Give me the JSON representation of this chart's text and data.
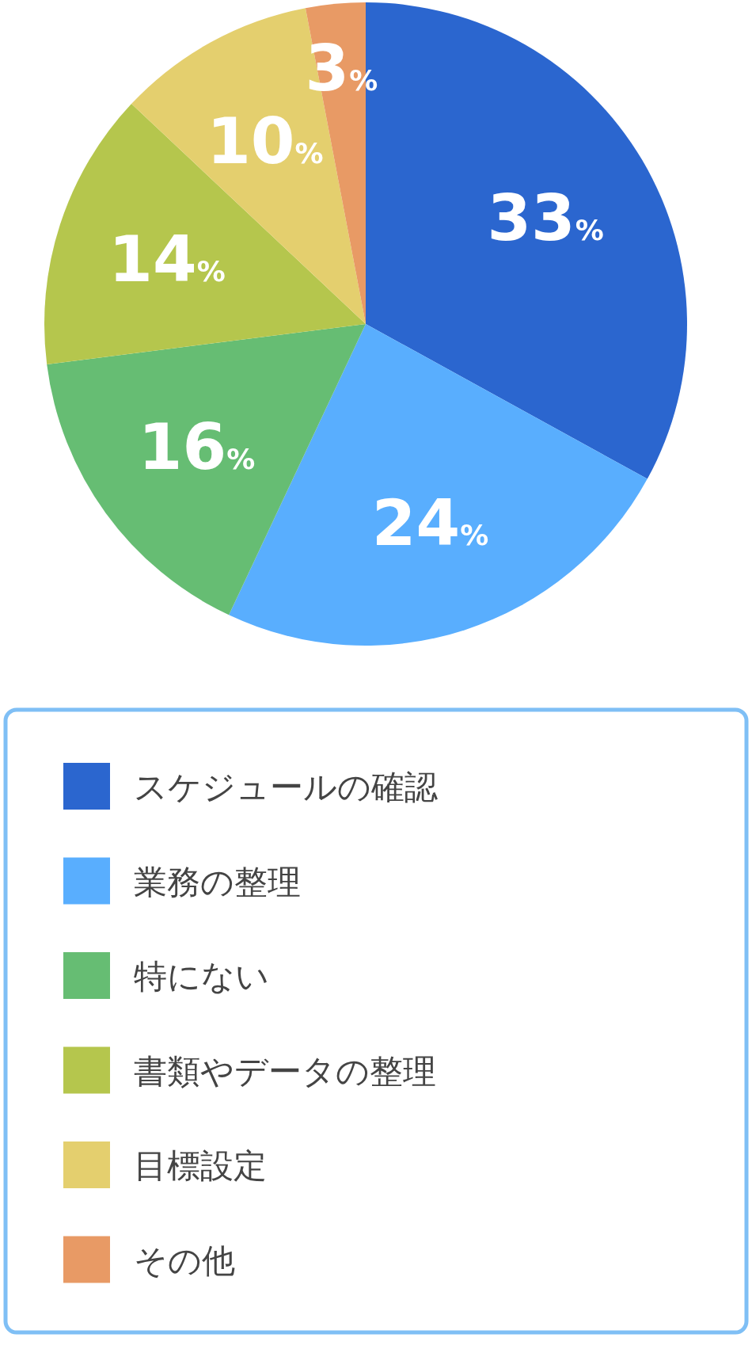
{
  "chart_data": {
    "type": "pie",
    "categories": [
      "スケジュールの確認",
      "業務の整理",
      "特にない",
      "書類やデータの整理",
      "目標設定",
      "その他"
    ],
    "values": [
      33,
      24,
      16,
      14,
      10,
      3
    ],
    "colors": [
      "#2b66cf",
      "#59aefe",
      "#66bd73",
      "#b5c64d",
      "#e4cf6e",
      "#e89a65"
    ],
    "value_labels": [
      "33%",
      "24%",
      "16%",
      "14%",
      "10%",
      "3%"
    ],
    "legend": "bottom"
  }
}
